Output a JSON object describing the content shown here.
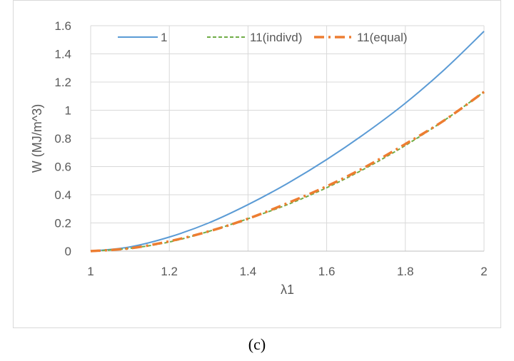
{
  "caption": "(c)",
  "chart_data": {
    "type": "line",
    "title": "",
    "xlabel": "λ1",
    "ylabel": "W (MJ/m^3)",
    "xlim": [
      1,
      2
    ],
    "ylim": [
      0,
      1.6
    ],
    "x_ticks": [
      "1",
      "1.2",
      "1.4",
      "1.6",
      "1.8",
      "2"
    ],
    "y_ticks": [
      "0",
      "0.2",
      "0.4",
      "0.6",
      "0.8",
      "1",
      "1.2",
      "1.4",
      "1.6"
    ],
    "grid": true,
    "legend_position": "top",
    "x": [
      1.0,
      1.1,
      1.2,
      1.3,
      1.4,
      1.5,
      1.6,
      1.7,
      1.8,
      1.9,
      2.0
    ],
    "series": [
      {
        "name": "1",
        "color": "#5b9bd5",
        "style": "solid",
        "values": [
          0,
          0.03,
          0.1,
          0.2,
          0.33,
          0.48,
          0.65,
          0.84,
          1.05,
          1.29,
          1.56
        ]
      },
      {
        "name": "11(indivd)",
        "color": "#70ad47",
        "style": "dashed",
        "values": [
          0,
          0.02,
          0.065,
          0.14,
          0.23,
          0.33,
          0.45,
          0.59,
          0.75,
          0.93,
          1.13
        ]
      },
      {
        "name": "11(equal)",
        "color": "#ed7d31",
        "style": "dash-dot",
        "values": [
          0,
          0.02,
          0.07,
          0.14,
          0.23,
          0.34,
          0.46,
          0.6,
          0.76,
          0.93,
          1.13
        ]
      }
    ]
  }
}
